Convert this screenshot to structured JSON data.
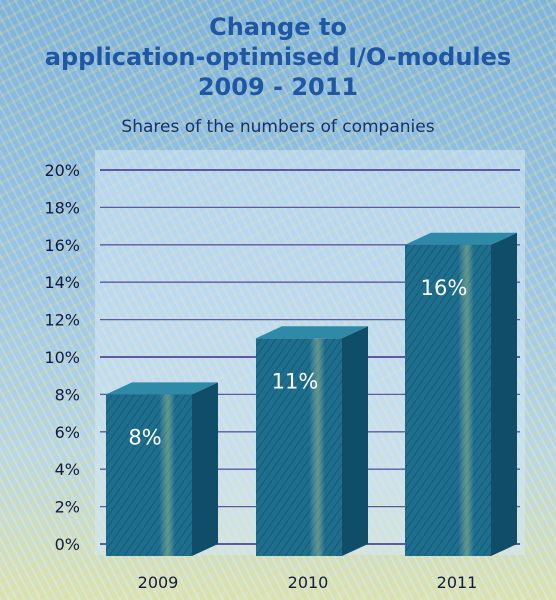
{
  "title_lines": [
    "Change to",
    "application-optimised I/O-modules",
    "2009 - 2011"
  ],
  "subtitle": "Shares of the numbers of companies",
  "colors": {
    "bar_front": "#1e6f8e",
    "bar_top": "#2f8aa8",
    "bar_side": "#0f4d69",
    "gridline": "#5d5aa0",
    "title": "#1f57a5"
  },
  "chart_data": {
    "type": "bar",
    "style": "3d",
    "categories": [
      "2009",
      "2010",
      "2011"
    ],
    "values": [
      8,
      11,
      16
    ],
    "data_labels": [
      "8%",
      "11%",
      "16%"
    ],
    "ylim": [
      0,
      20
    ],
    "yticks": [
      0,
      2,
      4,
      6,
      8,
      10,
      12,
      14,
      16,
      18,
      20
    ],
    "ytick_labels": [
      "0%",
      "2%",
      "4%",
      "6%",
      "8%",
      "10%",
      "12%",
      "14%",
      "16%",
      "18%",
      "20%"
    ],
    "grid": true,
    "legend": "none"
  }
}
